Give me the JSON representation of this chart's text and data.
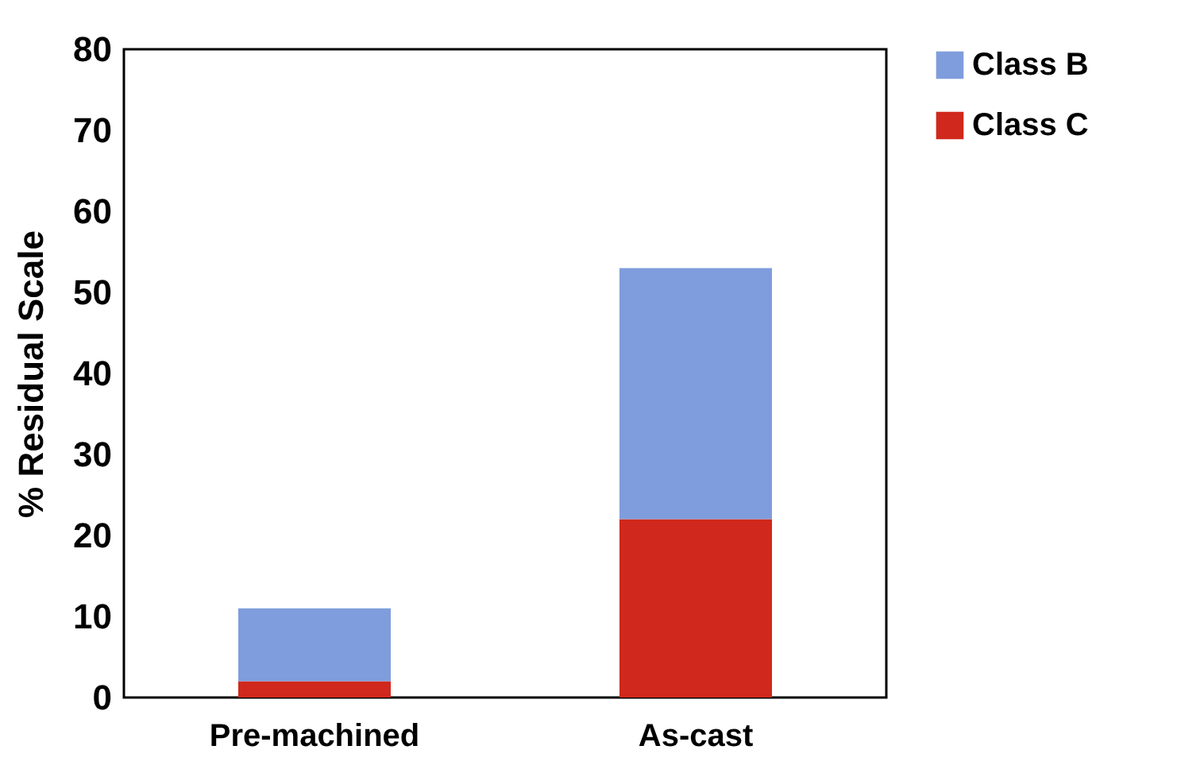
{
  "chart_data": {
    "type": "bar",
    "ylabel": "% Residual Scale",
    "categories": [
      "Pre-machined",
      "As-cast"
    ],
    "series": [
      {
        "name": "Class C",
        "color": "#d0281c",
        "values": [
          2,
          22
        ]
      },
      {
        "name": "Class B",
        "color": "#7f9ddc",
        "values": [
          9,
          31
        ]
      }
    ],
    "stacked": true,
    "ylim": [
      0,
      80
    ],
    "yticks": [
      0,
      10,
      20,
      30,
      40,
      50,
      60,
      70,
      80
    ],
    "grid": false,
    "legend": "right"
  }
}
